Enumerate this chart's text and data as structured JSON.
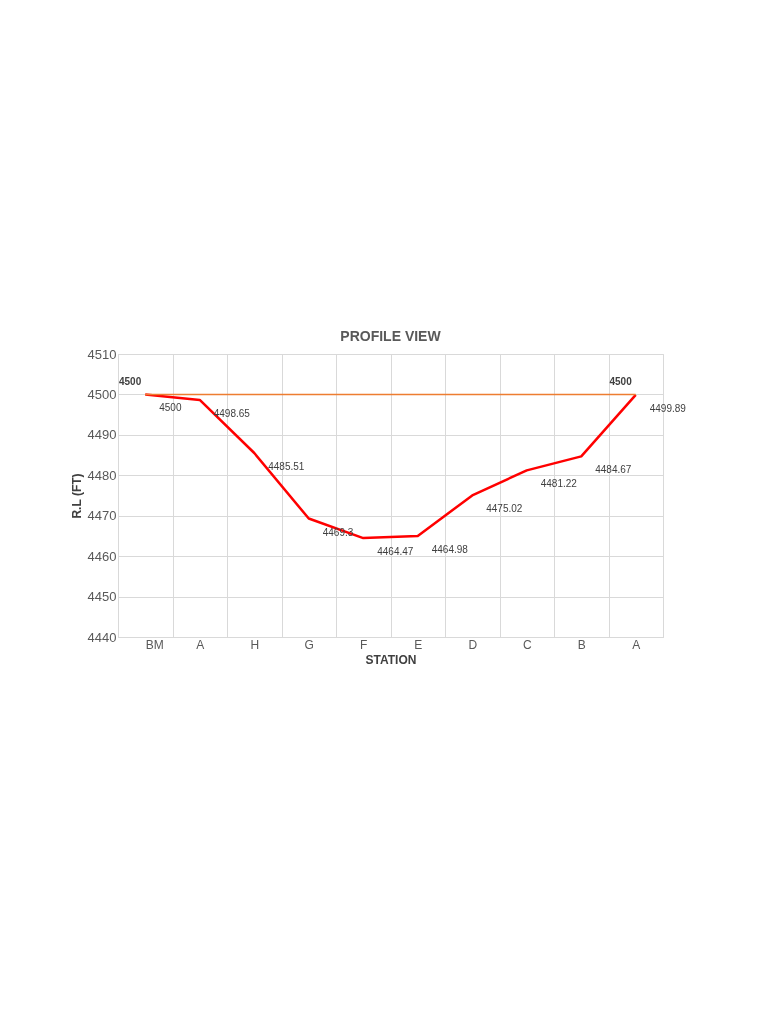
{
  "chart_data": {
    "type": "line",
    "title": "PROFILE VIEW",
    "xlabel": "STATION",
    "ylabel": "R.L (FT)",
    "categories": [
      "BM",
      "A",
      "H",
      "G",
      "F",
      "E",
      "D",
      "C",
      "B",
      "A"
    ],
    "series": [
      {
        "color": "#ff0000",
        "values": [
          4500,
          4498.65,
          4485.51,
          4469.3,
          4464.47,
          4464.98,
          4475.02,
          4481.22,
          4484.67,
          4499.89
        ]
      },
      {
        "color": "#ed7d31",
        "values": [
          4500,
          null,
          null,
          null,
          null,
          null,
          null,
          null,
          null,
          4500
        ]
      }
    ],
    "ylim": [
      4440,
      4510
    ],
    "yticks": [
      4440,
      4450,
      4460,
      4470,
      4480,
      4490,
      4500,
      4510
    ],
    "grid": true,
    "data_labels": true,
    "marker": "none",
    "line_style": "solid"
  }
}
